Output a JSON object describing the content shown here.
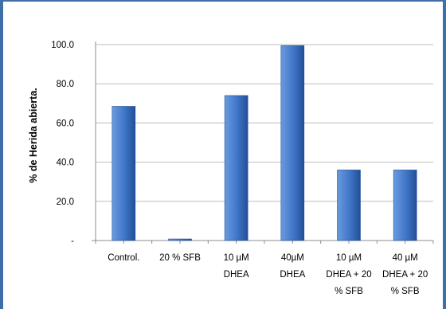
{
  "chart_data": {
    "type": "bar",
    "title": "",
    "xlabel": "",
    "ylabel": "% de Herida abierta.",
    "ylim": [
      0,
      100
    ],
    "yticks": [
      "-",
      "20.0",
      "40.0",
      "60.0",
      "80.0",
      "100.0"
    ],
    "grid": true,
    "legend": "none",
    "categories": [
      [
        "Control."
      ],
      [
        "20 % SFB"
      ],
      [
        "10 µM",
        "DHEA"
      ],
      [
        "40µM",
        "DHEA"
      ],
      [
        "10 µM",
        "DHEA + 20",
        "% SFB"
      ],
      [
        "40 µM",
        "DHEA + 20",
        "% SFB"
      ]
    ],
    "values": [
      68.5,
      0.8,
      74,
      99.5,
      36,
      36
    ],
    "colors": {
      "bar_light": "#6a9be0",
      "bar_mid": "#3f75c6",
      "bar_dark": "#214f96",
      "frame": "#3f6fa8",
      "grid": "#bdbdbd",
      "axis": "#8c8c8c"
    }
  }
}
